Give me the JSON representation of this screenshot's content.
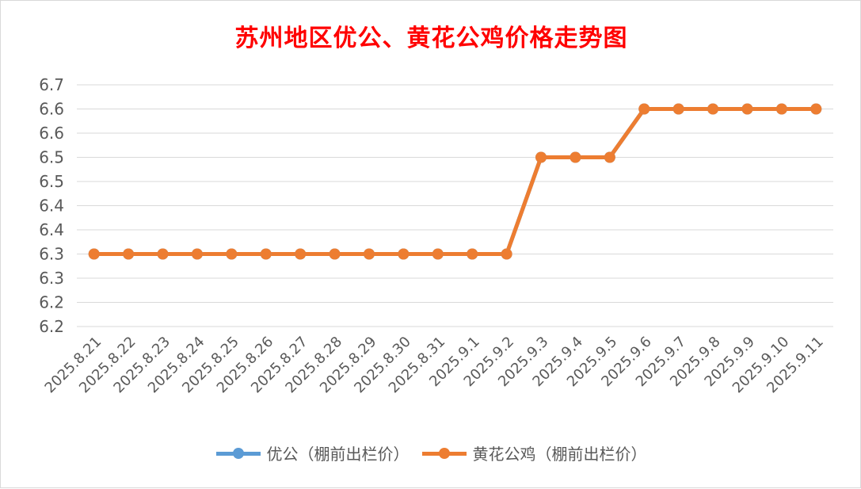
{
  "chart_data": {
    "type": "line",
    "title": "苏州地区优公、黄花公鸡价格走势图",
    "xlabel": "",
    "ylabel": "",
    "categories": [
      "2025.8.21",
      "2025.8.22",
      "2025.8.23",
      "2025.8.24",
      "2025.8.25",
      "2025.8.26",
      "2025.8.27",
      "2025.8.28",
      "2025.8.29",
      "2025.8.30",
      "2025.8.31",
      "2025.9.1",
      "2025.9.2",
      "2025.9.3",
      "2025.9.4",
      "2025.9.5",
      "2025.9.6",
      "2025.9.7",
      "2025.9.8",
      "2025.9.9",
      "2025.9.10",
      "2025.9.11"
    ],
    "y_ticks": [
      "6.2",
      "6.2",
      "6.3",
      "6.3",
      "6.4",
      "6.4",
      "6.5",
      "6.5",
      "6.6",
      "6.6",
      "6.7"
    ],
    "ylim": [
      6.15,
      6.65
    ],
    "grid": true,
    "legend_position": "bottom",
    "series": [
      {
        "name": "优公（棚前出栏价）",
        "color": "#5b9bd5",
        "values": [
          6.3,
          6.3,
          6.3,
          6.3,
          6.3,
          6.3,
          6.3,
          6.3,
          6.3,
          6.3,
          6.3,
          6.3,
          6.3,
          6.5,
          6.5,
          6.5,
          6.6,
          6.6,
          6.6,
          6.6,
          6.6,
          6.6
        ]
      },
      {
        "name": "黄花公鸡（棚前出栏价）",
        "color": "#ed7d31",
        "values": [
          6.3,
          6.3,
          6.3,
          6.3,
          6.3,
          6.3,
          6.3,
          6.3,
          6.3,
          6.3,
          6.3,
          6.3,
          6.3,
          6.5,
          6.5,
          6.5,
          6.6,
          6.6,
          6.6,
          6.6,
          6.6,
          6.6
        ]
      }
    ]
  }
}
